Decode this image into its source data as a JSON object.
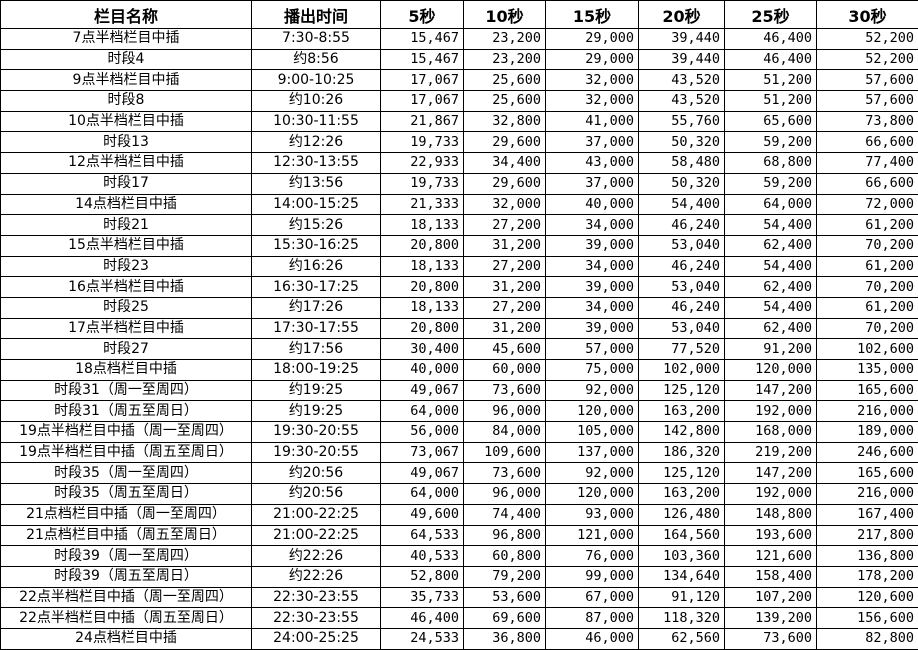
{
  "table": {
    "header": [
      "栏目名称",
      "播出时间",
      "5秒",
      "10秒",
      "15秒",
      "20秒",
      "25秒",
      "30秒"
    ],
    "rows": [
      [
        "7点半档栏目中插",
        "7:30-8:55",
        "15,467",
        "23,200",
        "29,000",
        "39,440",
        "46,400",
        "52,200"
      ],
      [
        "时段4",
        "约8:56",
        "15,467",
        "23,200",
        "29,000",
        "39,440",
        "46,400",
        "52,200"
      ],
      [
        "9点半档栏目中插",
        "9:00-10:25",
        "17,067",
        "25,600",
        "32,000",
        "43,520",
        "51,200",
        "57,600"
      ],
      [
        "时段8",
        "约10:26",
        "17,067",
        "25,600",
        "32,000",
        "43,520",
        "51,200",
        "57,600"
      ],
      [
        "10点半档栏目中插",
        "10:30-11:55",
        "21,867",
        "32,800",
        "41,000",
        "55,760",
        "65,600",
        "73,800"
      ],
      [
        "时段13",
        "约12:26",
        "19,733",
        "29,600",
        "37,000",
        "50,320",
        "59,200",
        "66,600"
      ],
      [
        "12点半档栏目中插",
        "12:30-13:55",
        "22,933",
        "34,400",
        "43,000",
        "58,480",
        "68,800",
        "77,400"
      ],
      [
        "时段17",
        "约13:56",
        "19,733",
        "29,600",
        "37,000",
        "50,320",
        "59,200",
        "66,600"
      ],
      [
        "14点档栏目中插",
        "14:00-15:25",
        "21,333",
        "32,000",
        "40,000",
        "54,400",
        "64,000",
        "72,000"
      ],
      [
        "时段21",
        "约15:26",
        "18,133",
        "27,200",
        "34,000",
        "46,240",
        "54,400",
        "61,200"
      ],
      [
        "15点半档栏目中插",
        "15:30-16:25",
        "20,800",
        "31,200",
        "39,000",
        "53,040",
        "62,400",
        "70,200"
      ],
      [
        "时段23",
        "约16:26",
        "18,133",
        "27,200",
        "34,000",
        "46,240",
        "54,400",
        "61,200"
      ],
      [
        "16点半档栏目中插",
        "16:30-17:25",
        "20,800",
        "31,200",
        "39,000",
        "53,040",
        "62,400",
        "70,200"
      ],
      [
        "时段25",
        "约17:26",
        "18,133",
        "27,200",
        "34,000",
        "46,240",
        "54,400",
        "61,200"
      ],
      [
        "17点半档栏目中插",
        "17:30-17:55",
        "20,800",
        "31,200",
        "39,000",
        "53,040",
        "62,400",
        "70,200"
      ],
      [
        "时段27",
        "约17:56",
        "30,400",
        "45,600",
        "57,000",
        "77,520",
        "91,200",
        "102,600"
      ],
      [
        "18点档栏目中插",
        "18:00-19:25",
        "40,000",
        "60,000",
        "75,000",
        "102,000",
        "120,000",
        "135,000"
      ],
      [
        "时段31（周一至周四）",
        "约19:25",
        "49,067",
        "73,600",
        "92,000",
        "125,120",
        "147,200",
        "165,600"
      ],
      [
        "时段31（周五至周日）",
        "约19:25",
        "64,000",
        "96,000",
        "120,000",
        "163,200",
        "192,000",
        "216,000"
      ],
      [
        "19点半档栏目中插（周一至周四）",
        "19:30-20:55",
        "56,000",
        "84,000",
        "105,000",
        "142,800",
        "168,000",
        "189,000"
      ],
      [
        "19点半档栏目中插（周五至周日）",
        "19:30-20:55",
        "73,067",
        "109,600",
        "137,000",
        "186,320",
        "219,200",
        "246,600"
      ],
      [
        "时段35（周一至周四）",
        "约20:56",
        "49,067",
        "73,600",
        "92,000",
        "125,120",
        "147,200",
        "165,600"
      ],
      [
        "时段35（周五至周日）",
        "约20:56",
        "64,000",
        "96,000",
        "120,000",
        "163,200",
        "192,000",
        "216,000"
      ],
      [
        "21点档栏目中插（周一至周四）",
        "21:00-22:25",
        "49,600",
        "74,400",
        "93,000",
        "126,480",
        "148,800",
        "167,400"
      ],
      [
        "21点档栏目中插（周五至周日）",
        "21:00-22:25",
        "64,533",
        "96,800",
        "121,000",
        "164,560",
        "193,600",
        "217,800"
      ],
      [
        "时段39（周一至周四）",
        "约22:26",
        "40,533",
        "60,800",
        "76,000",
        "103,360",
        "121,600",
        "136,800"
      ],
      [
        "时段39（周五至周日）",
        "约22:26",
        "52,800",
        "79,200",
        "99,000",
        "134,640",
        "158,400",
        "178,200"
      ],
      [
        "22点半档栏目中插（周一至周四）",
        "22:30-23:55",
        "35,733",
        "53,600",
        "67,000",
        "91,120",
        "107,200",
        "120,600"
      ],
      [
        "22点半档栏目中插（周五至周日）",
        "22:30-23:55",
        "46,400",
        "69,600",
        "87,000",
        "118,320",
        "139,200",
        "156,600"
      ],
      [
        "24点档栏目中插",
        "24:00-25:25",
        "24,533",
        "36,800",
        "46,000",
        "62,560",
        "73,600",
        "82,800"
      ]
    ]
  }
}
